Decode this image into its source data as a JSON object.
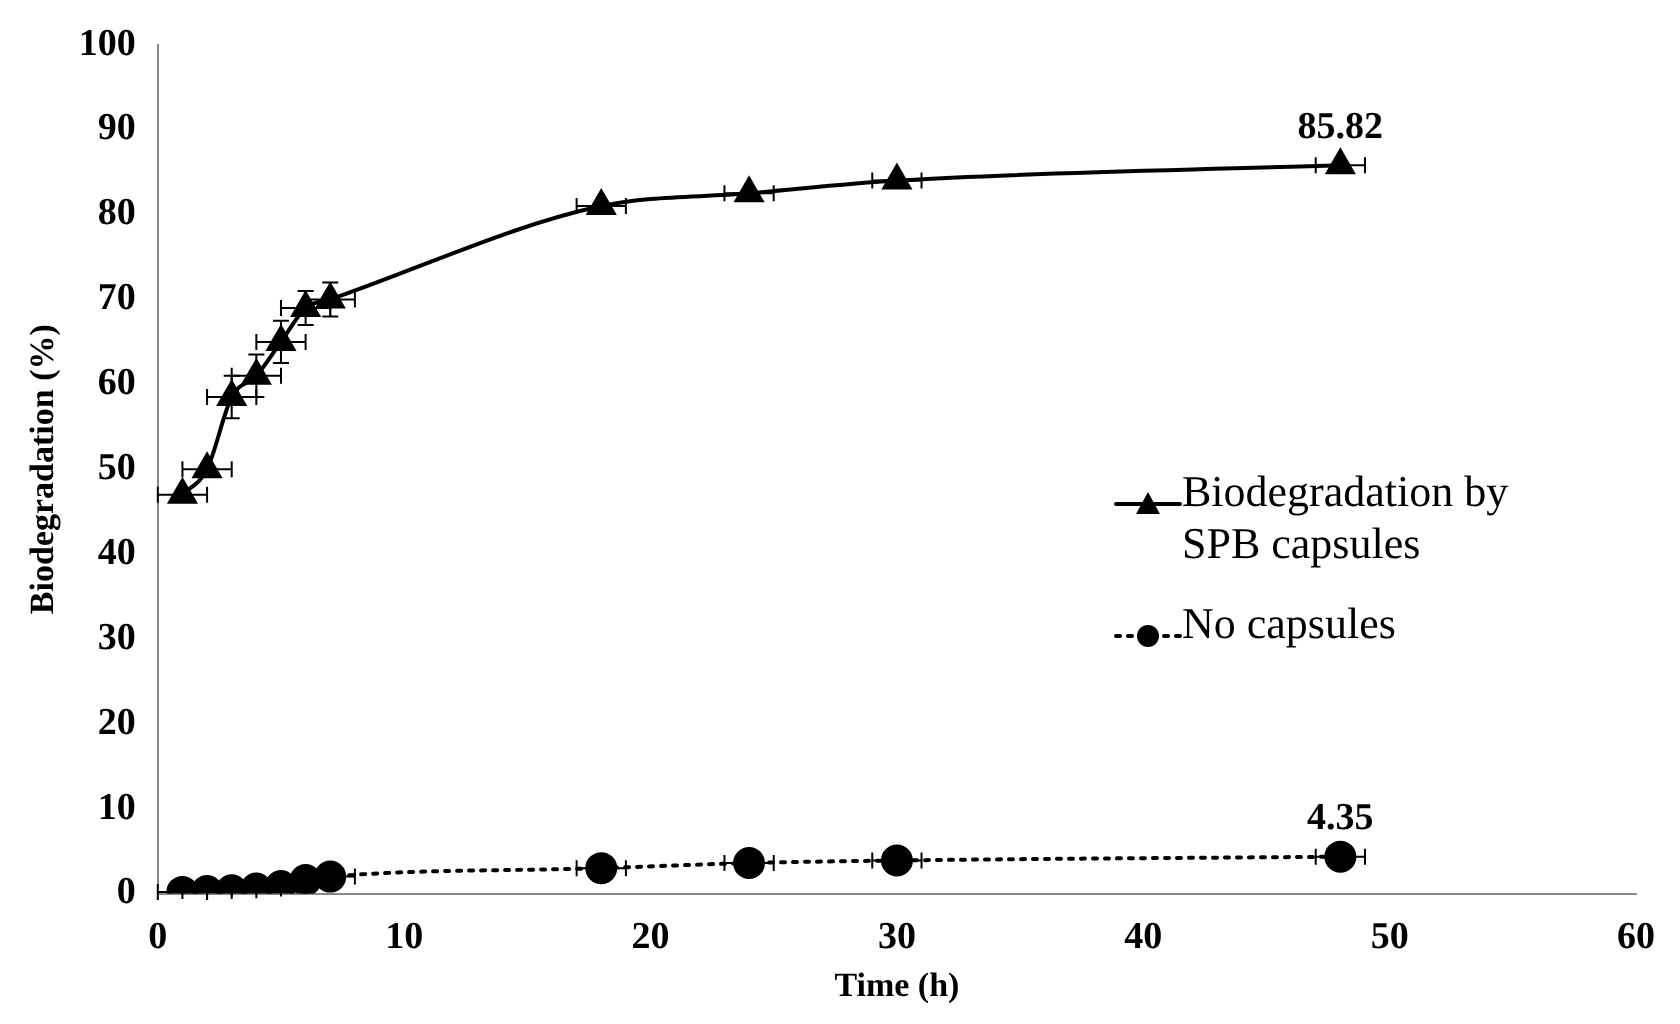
{
  "chart_data": {
    "type": "line",
    "xlabel": "Time (h)",
    "ylabel": "Biodegradation (%)",
    "xlim": [
      0,
      60
    ],
    "xticks": [
      0,
      10,
      20,
      30,
      40,
      50,
      60
    ],
    "ylim": [
      0,
      100
    ],
    "yticks": [
      0,
      10,
      20,
      30,
      40,
      50,
      60,
      70,
      80,
      90,
      100
    ],
    "grid": false,
    "legend": "right",
    "series": [
      {
        "name": "Biodegradation by SPB capsules",
        "color": "#000000",
        "marker": "triangle",
        "line_style": "solid",
        "x": [
          1,
          2,
          3,
          4,
          5,
          6,
          7,
          18,
          24,
          30,
          48
        ],
        "values": [
          47,
          50,
          58.5,
          61,
          65,
          69,
          70,
          81,
          82.5,
          84,
          85.82
        ],
        "value_labels": [
          null,
          null,
          null,
          null,
          null,
          null,
          null,
          null,
          null,
          null,
          "85.82"
        ],
        "errors": [
          null,
          null,
          2.5,
          2.5,
          2.5,
          2,
          2,
          null,
          null,
          null,
          null
        ],
        "xerrors": [
          1,
          1,
          1,
          1,
          1,
          1,
          1,
          1,
          1,
          1,
          1
        ]
      },
      {
        "name": "No capsules",
        "color": "#000000",
        "marker": "circle",
        "line_style": "dotted",
        "x": [
          1,
          2,
          3,
          4,
          5,
          6,
          7,
          18,
          24,
          30,
          48
        ],
        "values": [
          0.2,
          0.3,
          0.4,
          0.6,
          0.9,
          1.6,
          2,
          3,
          3.6,
          3.9,
          4.35
        ],
        "value_labels": [
          null,
          null,
          null,
          null,
          null,
          null,
          null,
          null,
          null,
          null,
          "4.35"
        ],
        "xerrors": [
          1,
          1,
          1,
          1,
          1,
          1,
          1,
          1,
          1,
          1,
          1
        ]
      }
    ]
  }
}
